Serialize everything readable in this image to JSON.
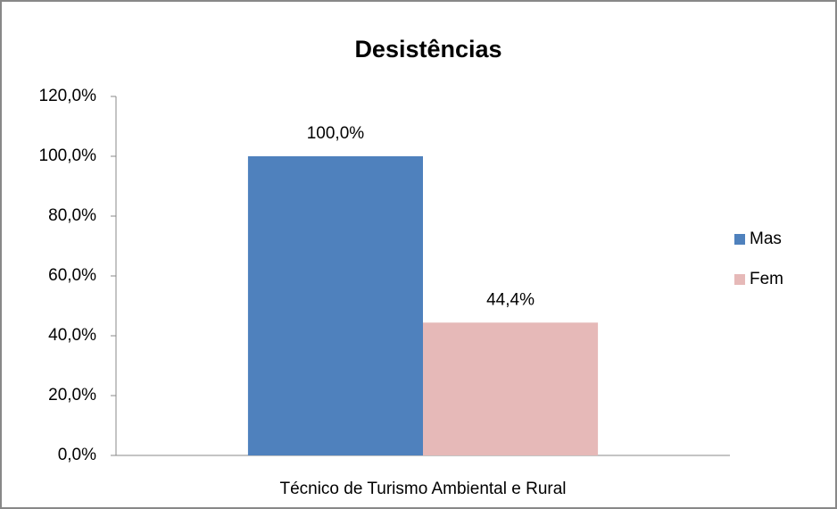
{
  "chart_data": {
    "type": "bar",
    "title": "Desistências",
    "categories": [
      "Técnico de Turismo Ambiental e Rural"
    ],
    "series": [
      {
        "name": "Mas",
        "color": "#4f81bd",
        "values": [
          100
        ],
        "value_labels": [
          "100,0%"
        ]
      },
      {
        "name": "Fem",
        "color": "#e6b9b8",
        "values": [
          44.4
        ],
        "value_labels": [
          "44,4%"
        ]
      }
    ],
    "ylim": [
      0,
      120
    ],
    "yticks": [
      {
        "value": 0,
        "label": "0,0%"
      },
      {
        "value": 20,
        "label": "20,0%"
      },
      {
        "value": 40,
        "label": "40,0%"
      },
      {
        "value": 60,
        "label": "60,0%"
      },
      {
        "value": 80,
        "label": "80,0%"
      },
      {
        "value": 100,
        "label": "100,0%"
      },
      {
        "value": 120,
        "label": "120,0%"
      }
    ],
    "grid": false,
    "legend": "right"
  }
}
